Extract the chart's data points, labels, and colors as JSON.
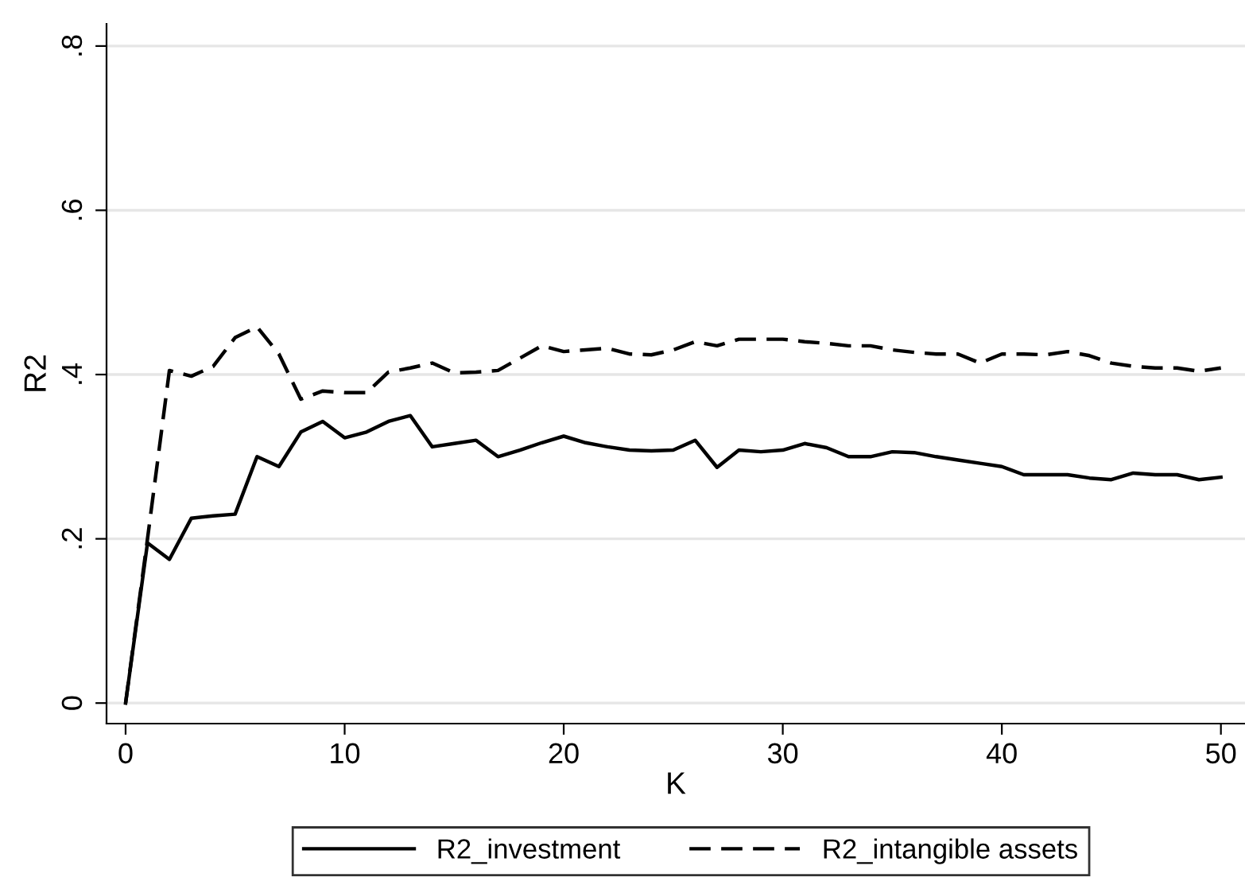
{
  "chart_data": {
    "type": "line",
    "xlabel": "K",
    "ylabel": "R2",
    "x": [
      0,
      1,
      2,
      3,
      4,
      5,
      6,
      7,
      8,
      9,
      10,
      11,
      12,
      13,
      14,
      15,
      16,
      17,
      18,
      19,
      20,
      21,
      22,
      23,
      24,
      25,
      26,
      27,
      28,
      29,
      30,
      31,
      32,
      33,
      34,
      35,
      36,
      37,
      38,
      39,
      40,
      41,
      42,
      43,
      44,
      45,
      46,
      47,
      48,
      49,
      50
    ],
    "series": [
      {
        "name": "R2_investment",
        "color": "#000000",
        "line_style": "solid",
        "values": [
          0,
          0.195,
          0.175,
          0.225,
          0.228,
          0.23,
          0.3,
          0.288,
          0.33,
          0.343,
          0.323,
          0.33,
          0.343,
          0.35,
          0.312,
          0.316,
          0.32,
          0.3,
          0.308,
          0.317,
          0.325,
          0.317,
          0.312,
          0.308,
          0.307,
          0.308,
          0.32,
          0.287,
          0.308,
          0.306,
          0.308,
          0.316,
          0.311,
          0.3,
          0.3,
          0.306,
          0.305,
          0.3,
          0.296,
          0.292,
          0.288,
          0.278,
          0.278,
          0.278,
          0.274,
          0.272,
          0.28,
          0.278,
          0.278,
          0.272,
          0.275
        ]
      },
      {
        "name": "R2_intangible assets",
        "color": "#000000",
        "line_style": "dashed",
        "values": [
          0,
          0.2,
          0.405,
          0.398,
          0.41,
          0.445,
          0.458,
          0.425,
          0.37,
          0.38,
          0.378,
          0.378,
          0.403,
          0.408,
          0.414,
          0.402,
          0.403,
          0.405,
          0.42,
          0.435,
          0.428,
          0.43,
          0.432,
          0.425,
          0.424,
          0.43,
          0.44,
          0.435,
          0.443,
          0.443,
          0.443,
          0.44,
          0.438,
          0.435,
          0.435,
          0.43,
          0.427,
          0.425,
          0.425,
          0.414,
          0.425,
          0.425,
          0.424,
          0.428,
          0.423,
          0.414,
          0.41,
          0.408,
          0.408,
          0.404,
          0.408
        ]
      }
    ],
    "xlim": [
      -0.87,
      51.1
    ],
    "ylim": [
      -0.025,
      0.827
    ],
    "xticks": [
      0,
      10,
      20,
      30,
      40,
      50
    ],
    "yticks": [
      {
        "value": 0,
        "label": "0"
      },
      {
        "value": 0.2,
        "label": ".2"
      },
      {
        "value": 0.4,
        "label": ".4"
      },
      {
        "value": 0.6,
        "label": ".6"
      },
      {
        "value": 0.8,
        "label": ".8"
      }
    ],
    "grid": "y",
    "legend": "bottom",
    "marker": "none"
  }
}
